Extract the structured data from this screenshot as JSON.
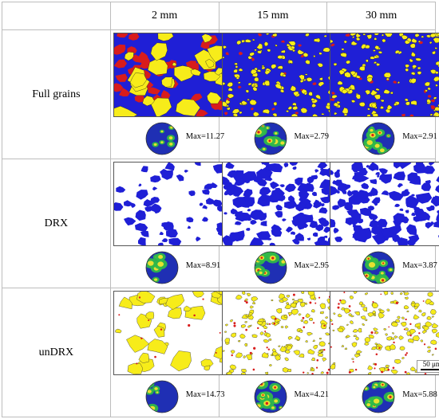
{
  "figure": {
    "columns": [
      "2 mm",
      "15 mm",
      "30 mm"
    ],
    "rows": [
      {
        "label": "Full grains",
        "kind": "full",
        "maxima": [
          "Max=11.27",
          "Max=2.79",
          "Max=2.91"
        ]
      },
      {
        "label": "DRX",
        "kind": "drx",
        "maxima": [
          "Max=8.91",
          "Max=2.95",
          "Max=3.87"
        ]
      },
      {
        "label": "unDRX",
        "kind": "undrx",
        "maxima": [
          "Max=14.73",
          "Max=4.21",
          "Max=5.88"
        ]
      }
    ],
    "scale_bar": "50 μm",
    "colors": {
      "drx_grain": "#1f1fd6",
      "undrx_grain": "#f7ec1a",
      "intermediate_grain": "#d81c1c",
      "background": "#ffffff",
      "pole_low": "#1f2fb4",
      "pole_mid": "#2fb84a",
      "pole_high": "#e8e030",
      "pole_peak": "#d8201a"
    }
  }
}
